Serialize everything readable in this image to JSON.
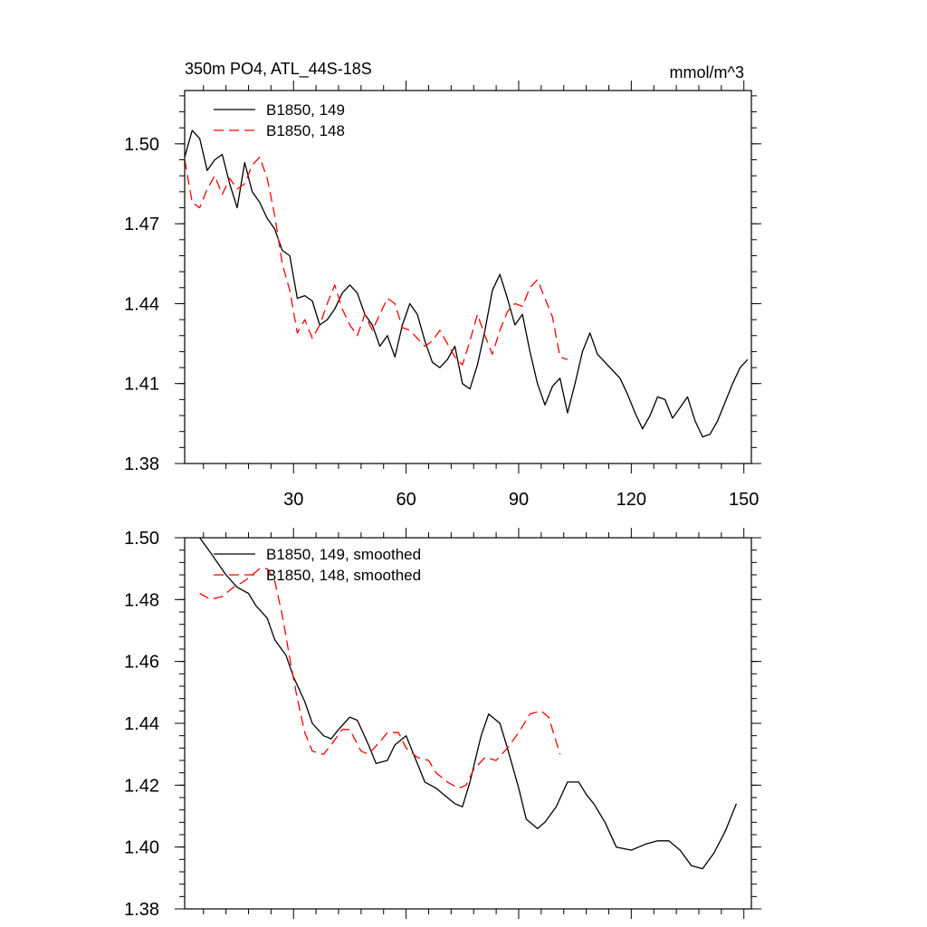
{
  "chart_data": [
    {
      "type": "line",
      "title": "350m PO4, ATL_44S-18S",
      "units": "mmol/m^3",
      "xlabel": "",
      "ylabel": "",
      "xlim": [
        1,
        152
      ],
      "ylim": [
        1.38,
        1.52
      ],
      "xticks": [
        30,
        60,
        90,
        120,
        150
      ],
      "yticks": [
        1.38,
        1.41,
        1.44,
        1.47,
        1.5
      ],
      "ytick_labels": [
        "1.38",
        "1.41",
        "1.44",
        "1.47",
        "1.50"
      ],
      "grid": false,
      "legend_position": "top-left",
      "series": [
        {
          "name": "B1850, 149",
          "color": "#000000",
          "dash": "solid",
          "x": [
            1,
            3,
            5,
            7,
            9,
            11,
            13,
            15,
            17,
            19,
            21,
            23,
            25,
            27,
            29,
            31,
            33,
            35,
            37,
            39,
            41,
            43,
            45,
            47,
            49,
            51,
            53,
            55,
            57,
            59,
            61,
            63,
            65,
            67,
            69,
            71,
            73,
            75,
            77,
            79,
            81,
            83,
            85,
            87,
            89,
            91,
            93,
            95,
            97,
            99,
            101,
            103,
            105,
            107,
            109,
            111,
            113,
            115,
            117,
            119,
            121,
            123,
            125,
            127,
            129,
            131,
            133,
            135,
            137,
            139,
            141,
            143,
            145,
            147,
            149,
            151
          ],
          "y": [
            1.495,
            1.505,
            1.502,
            1.49,
            1.494,
            1.496,
            1.485,
            1.476,
            1.493,
            1.482,
            1.478,
            1.472,
            1.468,
            1.46,
            1.458,
            1.442,
            1.443,
            1.441,
            1.432,
            1.434,
            1.438,
            1.444,
            1.447,
            1.444,
            1.436,
            1.432,
            1.424,
            1.428,
            1.42,
            1.432,
            1.44,
            1.436,
            1.426,
            1.418,
            1.416,
            1.419,
            1.424,
            1.41,
            1.408,
            1.417,
            1.43,
            1.445,
            1.451,
            1.442,
            1.432,
            1.436,
            1.422,
            1.41,
            1.402,
            1.409,
            1.412,
            1.399,
            1.41,
            1.422,
            1.429,
            1.421,
            1.418,
            1.415,
            1.412,
            1.406,
            1.399,
            1.393,
            1.398,
            1.405,
            1.404,
            1.397,
            1.401,
            1.405,
            1.396,
            1.39,
            1.391,
            1.396,
            1.403,
            1.41,
            1.416,
            1.419
          ]
        },
        {
          "name": "B1850, 148",
          "color": "#ff0000",
          "dash": "dashed",
          "x": [
            1,
            3,
            5,
            7,
            9,
            11,
            13,
            15,
            17,
            19,
            21,
            23,
            25,
            27,
            29,
            31,
            33,
            35,
            37,
            39,
            41,
            43,
            45,
            47,
            49,
            51,
            53,
            55,
            57,
            59,
            61,
            63,
            65,
            67,
            69,
            71,
            73,
            75,
            77,
            79,
            81,
            83,
            85,
            87,
            89,
            91,
            93,
            95,
            97,
            99,
            101,
            103
          ],
          "y": [
            1.494,
            1.478,
            1.476,
            1.483,
            1.488,
            1.481,
            1.487,
            1.483,
            1.485,
            1.492,
            1.495,
            1.487,
            1.473,
            1.455,
            1.445,
            1.429,
            1.434,
            1.427,
            1.432,
            1.44,
            1.447,
            1.438,
            1.432,
            1.428,
            1.436,
            1.43,
            1.436,
            1.442,
            1.44,
            1.431,
            1.43,
            1.427,
            1.424,
            1.426,
            1.43,
            1.425,
            1.42,
            1.417,
            1.426,
            1.436,
            1.428,
            1.421,
            1.43,
            1.437,
            1.44,
            1.439,
            1.446,
            1.449,
            1.442,
            1.435,
            1.42,
            1.419
          ]
        }
      ]
    },
    {
      "type": "line",
      "title": "",
      "xlabel": "",
      "ylabel": "",
      "xlim": [
        1,
        152
      ],
      "ylim": [
        1.38,
        1.5
      ],
      "xticks": [
        30,
        60,
        90,
        120,
        150
      ],
      "yticks": [
        1.38,
        1.4,
        1.42,
        1.44,
        1.46,
        1.48,
        1.5
      ],
      "ytick_labels": [
        "1.38",
        "1.40",
        "1.42",
        "1.44",
        "1.46",
        "1.48",
        "1.50"
      ],
      "grid": false,
      "legend_position": "top-left",
      "series": [
        {
          "name": "B1850, 149, smoothed",
          "color": "#000000",
          "dash": "solid",
          "x": [
            5,
            8,
            12,
            15,
            18,
            20,
            23,
            25,
            28,
            30,
            33,
            35,
            38,
            40,
            42,
            45,
            47,
            50,
            52,
            55,
            57,
            60,
            62,
            65,
            68,
            70,
            73,
            75,
            77,
            80,
            82,
            85,
            87,
            90,
            92,
            95,
            97,
            100,
            103,
            106,
            108,
            110,
            113,
            116,
            120,
            124,
            127,
            130,
            133,
            136,
            139,
            142,
            145,
            148
          ],
          "y": [
            1.5,
            1.495,
            1.488,
            1.484,
            1.482,
            1.478,
            1.474,
            1.467,
            1.462,
            1.455,
            1.447,
            1.44,
            1.436,
            1.435,
            1.438,
            1.442,
            1.441,
            1.433,
            1.427,
            1.428,
            1.433,
            1.436,
            1.43,
            1.421,
            1.419,
            1.417,
            1.414,
            1.413,
            1.421,
            1.436,
            1.443,
            1.44,
            1.432,
            1.419,
            1.409,
            1.406,
            1.408,
            1.413,
            1.421,
            1.421,
            1.417,
            1.414,
            1.408,
            1.4,
            1.399,
            1.401,
            1.402,
            1.402,
            1.399,
            1.394,
            1.393,
            1.398,
            1.405,
            1.414
          ]
        },
        {
          "name": "B1850, 148, smoothed",
          "color": "#ff0000",
          "dash": "dashed",
          "x": [
            5,
            8,
            11,
            14,
            17,
            19,
            21,
            23,
            25,
            27,
            29,
            31,
            33,
            35,
            38,
            40,
            43,
            45,
            48,
            50,
            53,
            55,
            58,
            60,
            63,
            66,
            68,
            71,
            74,
            76,
            78,
            81,
            84,
            87,
            90,
            93,
            96,
            98,
            101
          ],
          "y": [
            1.482,
            1.48,
            1.481,
            1.484,
            1.486,
            1.488,
            1.49,
            1.49,
            1.486,
            1.475,
            1.461,
            1.448,
            1.437,
            1.431,
            1.43,
            1.433,
            1.438,
            1.438,
            1.431,
            1.43,
            1.434,
            1.437,
            1.437,
            1.432,
            1.429,
            1.428,
            1.424,
            1.421,
            1.419,
            1.42,
            1.425,
            1.429,
            1.428,
            1.432,
            1.437,
            1.443,
            1.444,
            1.442,
            1.43
          ]
        }
      ]
    }
  ]
}
